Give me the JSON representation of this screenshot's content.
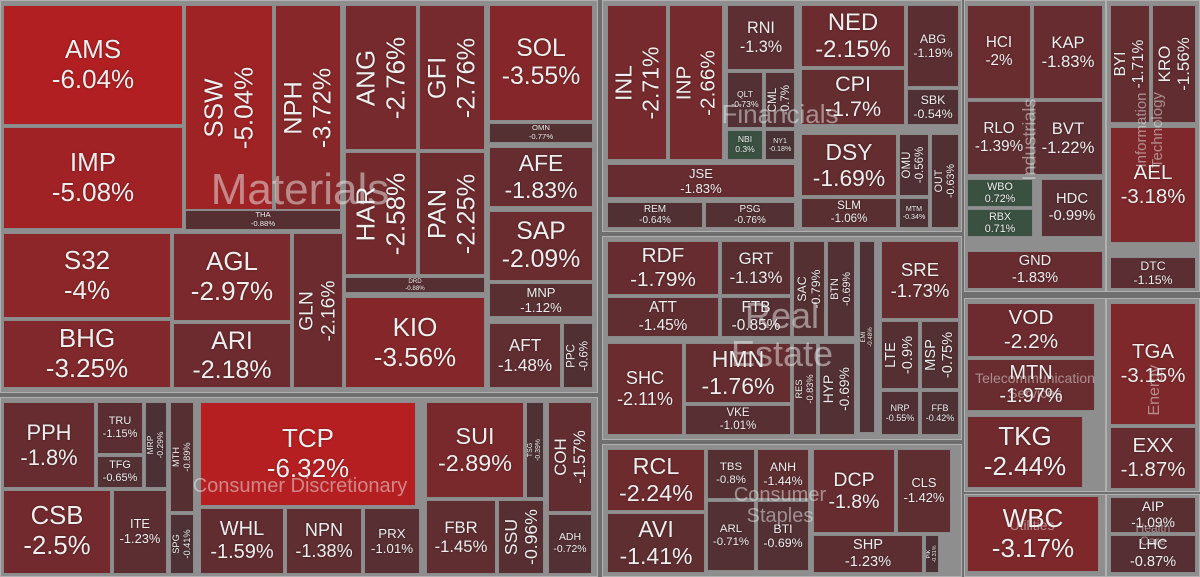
{
  "chart_data": {
    "type": "treemap",
    "sectors": [
      {
        "name": "Materials",
        "labels": [
          "AMS",
          "IMP",
          "SSW",
          "NPH",
          "THA",
          "S32",
          "BHG",
          "AGL",
          "ARI",
          "GLN",
          "ANG",
          "GFI",
          "HAR",
          "PAN",
          "DRD",
          "KIO",
          "SOL",
          "OMN",
          "AFE",
          "SAP",
          "MNP",
          "AFT",
          "PPC"
        ],
        "values": [
          -6.04,
          -5.08,
          -5.04,
          -3.72,
          -0.88,
          -4,
          -3.25,
          -2.97,
          -2.18,
          -2.16,
          -2.76,
          -2.76,
          -2.58,
          -2.25,
          -0.88,
          -3.56,
          -3.55,
          -0.77,
          -1.83,
          -2.09,
          -1.12,
          -1.48,
          -0.6
        ],
        "value_labels": [
          "-6.04%",
          "-5.08%",
          "-5.04%",
          "-3.72%",
          "-0.88%",
          "-4%",
          "-3.25%",
          "-2.97%",
          "-2.18%",
          "-2.16%",
          "-2.76%",
          "-2.76%",
          "-2.58%",
          "-2.25%",
          "-0.88%",
          "-3.56%",
          "-3.55%",
          "-0.77%",
          "-1.83%",
          "-2.09%",
          "-1.12%",
          "-1.48%",
          "-0.6%"
        ]
      },
      {
        "name": "Consumer Discretionary",
        "labels": [
          "PPH",
          "TRU",
          "TFG",
          "MRP",
          "CSB",
          "ITE",
          "MTH",
          "SPG",
          "TCP",
          "WHL",
          "NPN",
          "PRX",
          "SUI",
          "TSG",
          "FBR",
          "SSU",
          "COH",
          "ADH"
        ],
        "values": [
          -1.8,
          -1.15,
          -0.65,
          -0.29,
          -2.5,
          -1.23,
          -0.89,
          -0.41,
          -6.32,
          -1.59,
          -1.38,
          -1.01,
          -2.89,
          -0.39,
          -1.45,
          -0.96,
          -1.57,
          -0.72
        ],
        "value_labels": [
          "-1.8%",
          "-1.15%",
          "-0.65%",
          "-0.29%",
          "-2.5%",
          "-1.23%",
          "-0.89%",
          "-0.41%",
          "-6.32%",
          "-1.59%",
          "-1.38%",
          "-1.01%",
          "-2.89%",
          "-0.39%",
          "-1.45%",
          "-0.96%",
          "-1.57%",
          "-0.72%"
        ]
      },
      {
        "name": "Financials",
        "labels": [
          "INL",
          "INP",
          "RNI",
          "QLT",
          "CML",
          "NBI",
          "NY1",
          "JSE",
          "REM",
          "PSG",
          "NED",
          "CPI",
          "ABG",
          "SBK",
          "DSY",
          "SLM",
          "OMU",
          "MTM",
          "OUT"
        ],
        "values": [
          -2.71,
          -2.66,
          -1.3,
          -0.73,
          -0.7,
          0.3,
          -0.18,
          -1.83,
          -0.64,
          -0.76,
          -2.15,
          -1.7,
          -1.19,
          -0.54,
          -1.69,
          -1.06,
          -0.56,
          -0.34,
          -0.63
        ],
        "value_labels": [
          "-2.71%",
          "-2.66%",
          "-1.3%",
          "-0.73%",
          "-0.7%",
          "0.3%",
          "-0.18%",
          "-1.83%",
          "-0.64%",
          "-0.76%",
          "-2.15%",
          "-1.7%",
          "-1.19%",
          "-0.54%",
          "-1.69%",
          "-1.06%",
          "-0.56%",
          "-0.34%",
          "-0.63%"
        ]
      },
      {
        "name": "Real Estate",
        "labels": [
          "RDF",
          "ATT",
          "GRT",
          "FTB",
          "SAC",
          "BTN",
          "EMI",
          "SHC",
          "HMN",
          "VKE",
          "RES",
          "HYP",
          "SRE",
          "LTE",
          "MSP",
          "NRP",
          "FFB"
        ],
        "values": [
          -1.79,
          -1.45,
          -1.13,
          -0.85,
          -0.79,
          -0.69,
          -0.48,
          -2.11,
          -1.76,
          -1.01,
          -0.83,
          -0.69,
          -1.73,
          -0.9,
          -0.75,
          -0.55,
          -0.42
        ],
        "value_labels": [
          "-1.79%",
          "-1.45%",
          "-1.13%",
          "-0.85%",
          "-0.79%",
          "-0.69%",
          "-0.48%",
          "-2.11%",
          "-1.76%",
          "-1.01%",
          "-0.83%",
          "-0.69%",
          "-1.73%",
          "-0.9%",
          "-0.75%",
          "-0.55%",
          "-0.42%"
        ]
      },
      {
        "name": "Consumer Staples",
        "labels": [
          "RCL",
          "AVI",
          "TBS",
          "ARL",
          "ANH",
          "BTI",
          "DCP",
          "CLS",
          "SHP",
          "PIK"
        ],
        "values": [
          -2.24,
          -1.41,
          -0.8,
          -0.71,
          -1.44,
          -0.69,
          -1.8,
          -1.42,
          -1.23,
          -0.31
        ],
        "value_labels": [
          "-2.24%",
          "-1.41%",
          "-0.8%",
          "-0.71%",
          "-1.44%",
          "-0.69%",
          "-1.8%",
          "-1.42%",
          "-1.23%",
          "-0.31%"
        ]
      },
      {
        "name": "Industrials",
        "labels": [
          "HCI",
          "KAP",
          "RLO",
          "BVT",
          "WBO",
          "RBX",
          "HDC",
          "GND"
        ],
        "values": [
          -2,
          -1.83,
          -1.39,
          -1.22,
          0.72,
          0.71,
          -0.99,
          -1.83
        ],
        "value_labels": [
          "-2%",
          "-1.83%",
          "-1.39%",
          "-1.22%",
          "0.72%",
          "0.71%",
          "-0.99%",
          "-1.83%"
        ]
      },
      {
        "name": "Information Technology",
        "labels": [
          "BYI",
          "KRO",
          "AEL",
          "DTC"
        ],
        "values": [
          -1.71,
          -1.56,
          -3.18,
          -1.15
        ],
        "value_labels": [
          "-1.71%",
          "-1.56%",
          "-3.18%",
          "-1.15%"
        ]
      },
      {
        "name": "Telecommunication Services",
        "labels": [
          "VOD",
          "MTN",
          "TKG"
        ],
        "values": [
          -2.2,
          -1.97,
          -2.44
        ],
        "value_labels": [
          "-2.2%",
          "-1.97%",
          "-2.44%"
        ]
      },
      {
        "name": "Energy",
        "labels": [
          "TGA",
          "EXX"
        ],
        "values": [
          -3.15,
          -1.87
        ],
        "value_labels": [
          "-3.15%",
          "-1.87%"
        ]
      },
      {
        "name": "Utilities",
        "labels": [
          "WBC"
        ],
        "values": [
          -3.17
        ],
        "value_labels": [
          "-3.17%"
        ]
      },
      {
        "name": "Health Care",
        "labels": [
          "AIP",
          "LHC"
        ],
        "values": [
          -1.09,
          -0.87
        ],
        "value_labels": [
          "-1.09%",
          "-0.87%"
        ]
      }
    ]
  }
}
